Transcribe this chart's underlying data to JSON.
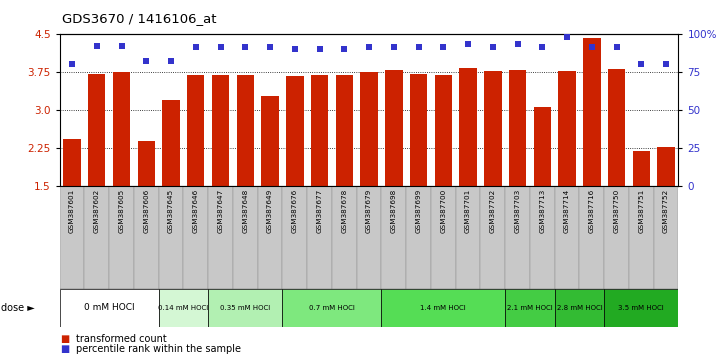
{
  "title": "GDS3670 / 1416106_at",
  "samples": [
    "GSM387601",
    "GSM387602",
    "GSM387605",
    "GSM387606",
    "GSM387645",
    "GSM387646",
    "GSM387647",
    "GSM387648",
    "GSM387649",
    "GSM387676",
    "GSM387677",
    "GSM387678",
    "GSM387679",
    "GSM387698",
    "GSM387699",
    "GSM387700",
    "GSM387701",
    "GSM387702",
    "GSM387703",
    "GSM387713",
    "GSM387714",
    "GSM387716",
    "GSM387750",
    "GSM387751",
    "GSM387752"
  ],
  "bar_values": [
    2.42,
    3.71,
    3.75,
    2.38,
    3.2,
    3.68,
    3.68,
    3.69,
    3.28,
    3.66,
    3.68,
    3.68,
    3.74,
    3.78,
    3.7,
    3.68,
    3.83,
    3.76,
    3.79,
    3.06,
    3.77,
    4.42,
    3.8,
    2.19,
    2.27
  ],
  "percentile_values": [
    80,
    92,
    92,
    82,
    82,
    91,
    91,
    91,
    91,
    90,
    90,
    90,
    91,
    91,
    91,
    91,
    93,
    91,
    93,
    91,
    98,
    91,
    91,
    80,
    80
  ],
  "dose_groups": [
    {
      "label": "0 mM HOCl",
      "start": 0,
      "end": 4,
      "color": "#ffffff"
    },
    {
      "label": "0.14 mM HOCl",
      "start": 4,
      "end": 6,
      "color": "#d4f7d4"
    },
    {
      "label": "0.35 mM HOCl",
      "start": 6,
      "end": 9,
      "color": "#b2f0b2"
    },
    {
      "label": "0.7 mM HOCl",
      "start": 9,
      "end": 13,
      "color": "#7ee87e"
    },
    {
      "label": "1.4 mM HOCl",
      "start": 13,
      "end": 18,
      "color": "#55dd55"
    },
    {
      "label": "2.1 mM HOCl",
      "start": 18,
      "end": 20,
      "color": "#44cc44"
    },
    {
      "label": "2.8 mM HOCl",
      "start": 20,
      "end": 22,
      "color": "#33bb33"
    },
    {
      "label": "3.5 mM HOCl",
      "start": 22,
      "end": 25,
      "color": "#22aa22"
    }
  ],
  "ylim_left": [
    1.5,
    4.5
  ],
  "ylim_right": [
    0,
    100
  ],
  "yticks_left": [
    1.5,
    2.25,
    3.0,
    3.75,
    4.5
  ],
  "yticks_right": [
    0,
    25,
    50,
    75,
    100
  ],
  "bar_color": "#cc2200",
  "dot_color": "#3333cc",
  "sample_bg_even": "#cccccc",
  "sample_bg_odd": "#bbbbbb",
  "xlabel_dose": "dose"
}
